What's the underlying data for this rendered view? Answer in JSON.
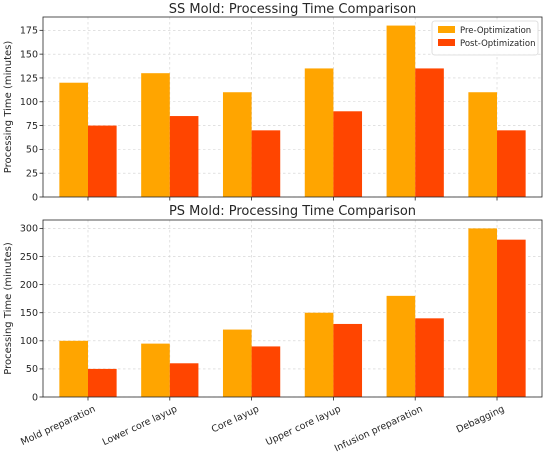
{
  "colors": {
    "pre": "#FFA500",
    "post": "#FF4500"
  },
  "chart_data": [
    {
      "type": "bar",
      "title": "SS Mold: Processing Time Comparison",
      "xlabel": "",
      "ylabel": "Processing Time (minutes)",
      "categories": [
        "Mold preparation",
        "Lower core layup",
        "Core layup",
        "Upper core layup",
        "Infusion preparation",
        "Debagging"
      ],
      "series": [
        {
          "name": "Pre-Optimization",
          "values": [
            120,
            130,
            110,
            135,
            180,
            110
          ]
        },
        {
          "name": "Post-Optimization",
          "values": [
            75,
            85,
            70,
            90,
            135,
            70
          ]
        }
      ],
      "ylim": [
        0,
        189
      ],
      "yticks": [
        0,
        25,
        50,
        75,
        100,
        125,
        150,
        175
      ],
      "grid": true,
      "legend_position": "top-right",
      "show_category_labels": false
    },
    {
      "type": "bar",
      "title": "PS Mold: Processing Time Comparison",
      "xlabel": "",
      "ylabel": "Processing Time (minutes)",
      "categories": [
        "Mold preparation",
        "Lower core layup",
        "Core layup",
        "Upper core layup",
        "Infusion preparation",
        "Debagging"
      ],
      "series": [
        {
          "name": "Pre-Optimization",
          "values": [
            100,
            95,
            120,
            150,
            180,
            300
          ]
        },
        {
          "name": "Post-Optimization",
          "values": [
            50,
            60,
            90,
            130,
            140,
            280
          ]
        }
      ],
      "ylim": [
        0,
        315
      ],
      "yticks": [
        0,
        50,
        100,
        150,
        200,
        250,
        300
      ],
      "grid": true,
      "legend_position": "none",
      "show_category_labels": true
    }
  ]
}
